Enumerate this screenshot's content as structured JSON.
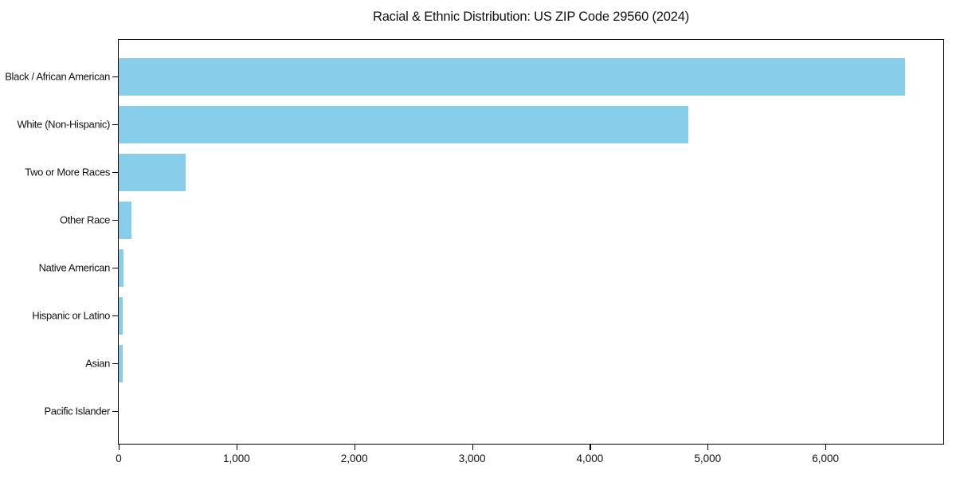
{
  "chart_data": {
    "type": "bar",
    "orientation": "horizontal",
    "title": "Racial & Ethnic Distribution: US ZIP Code 29560 (2024)",
    "categories": [
      "Black / African American",
      "White (Non-Hispanic)",
      "Two or More Races",
      "Other Race",
      "Native American",
      "Hispanic or Latino",
      "Asian",
      "Pacific Islander"
    ],
    "values": [
      6675,
      4835,
      570,
      110,
      42,
      33,
      36,
      0
    ],
    "xlabel": "",
    "ylabel": "",
    "xlim": [
      0,
      7000
    ],
    "x_ticks": [
      0,
      1000,
      2000,
      3000,
      4000,
      5000,
      6000
    ],
    "x_tick_labels": [
      "0",
      "1,000",
      "2,000",
      "3,000",
      "4,000",
      "5,000",
      "6,000"
    ],
    "bar_color": "#87CEEB",
    "axis_color": "#000000",
    "background_color": "#FFFFFF",
    "grid": false,
    "legend": null
  }
}
